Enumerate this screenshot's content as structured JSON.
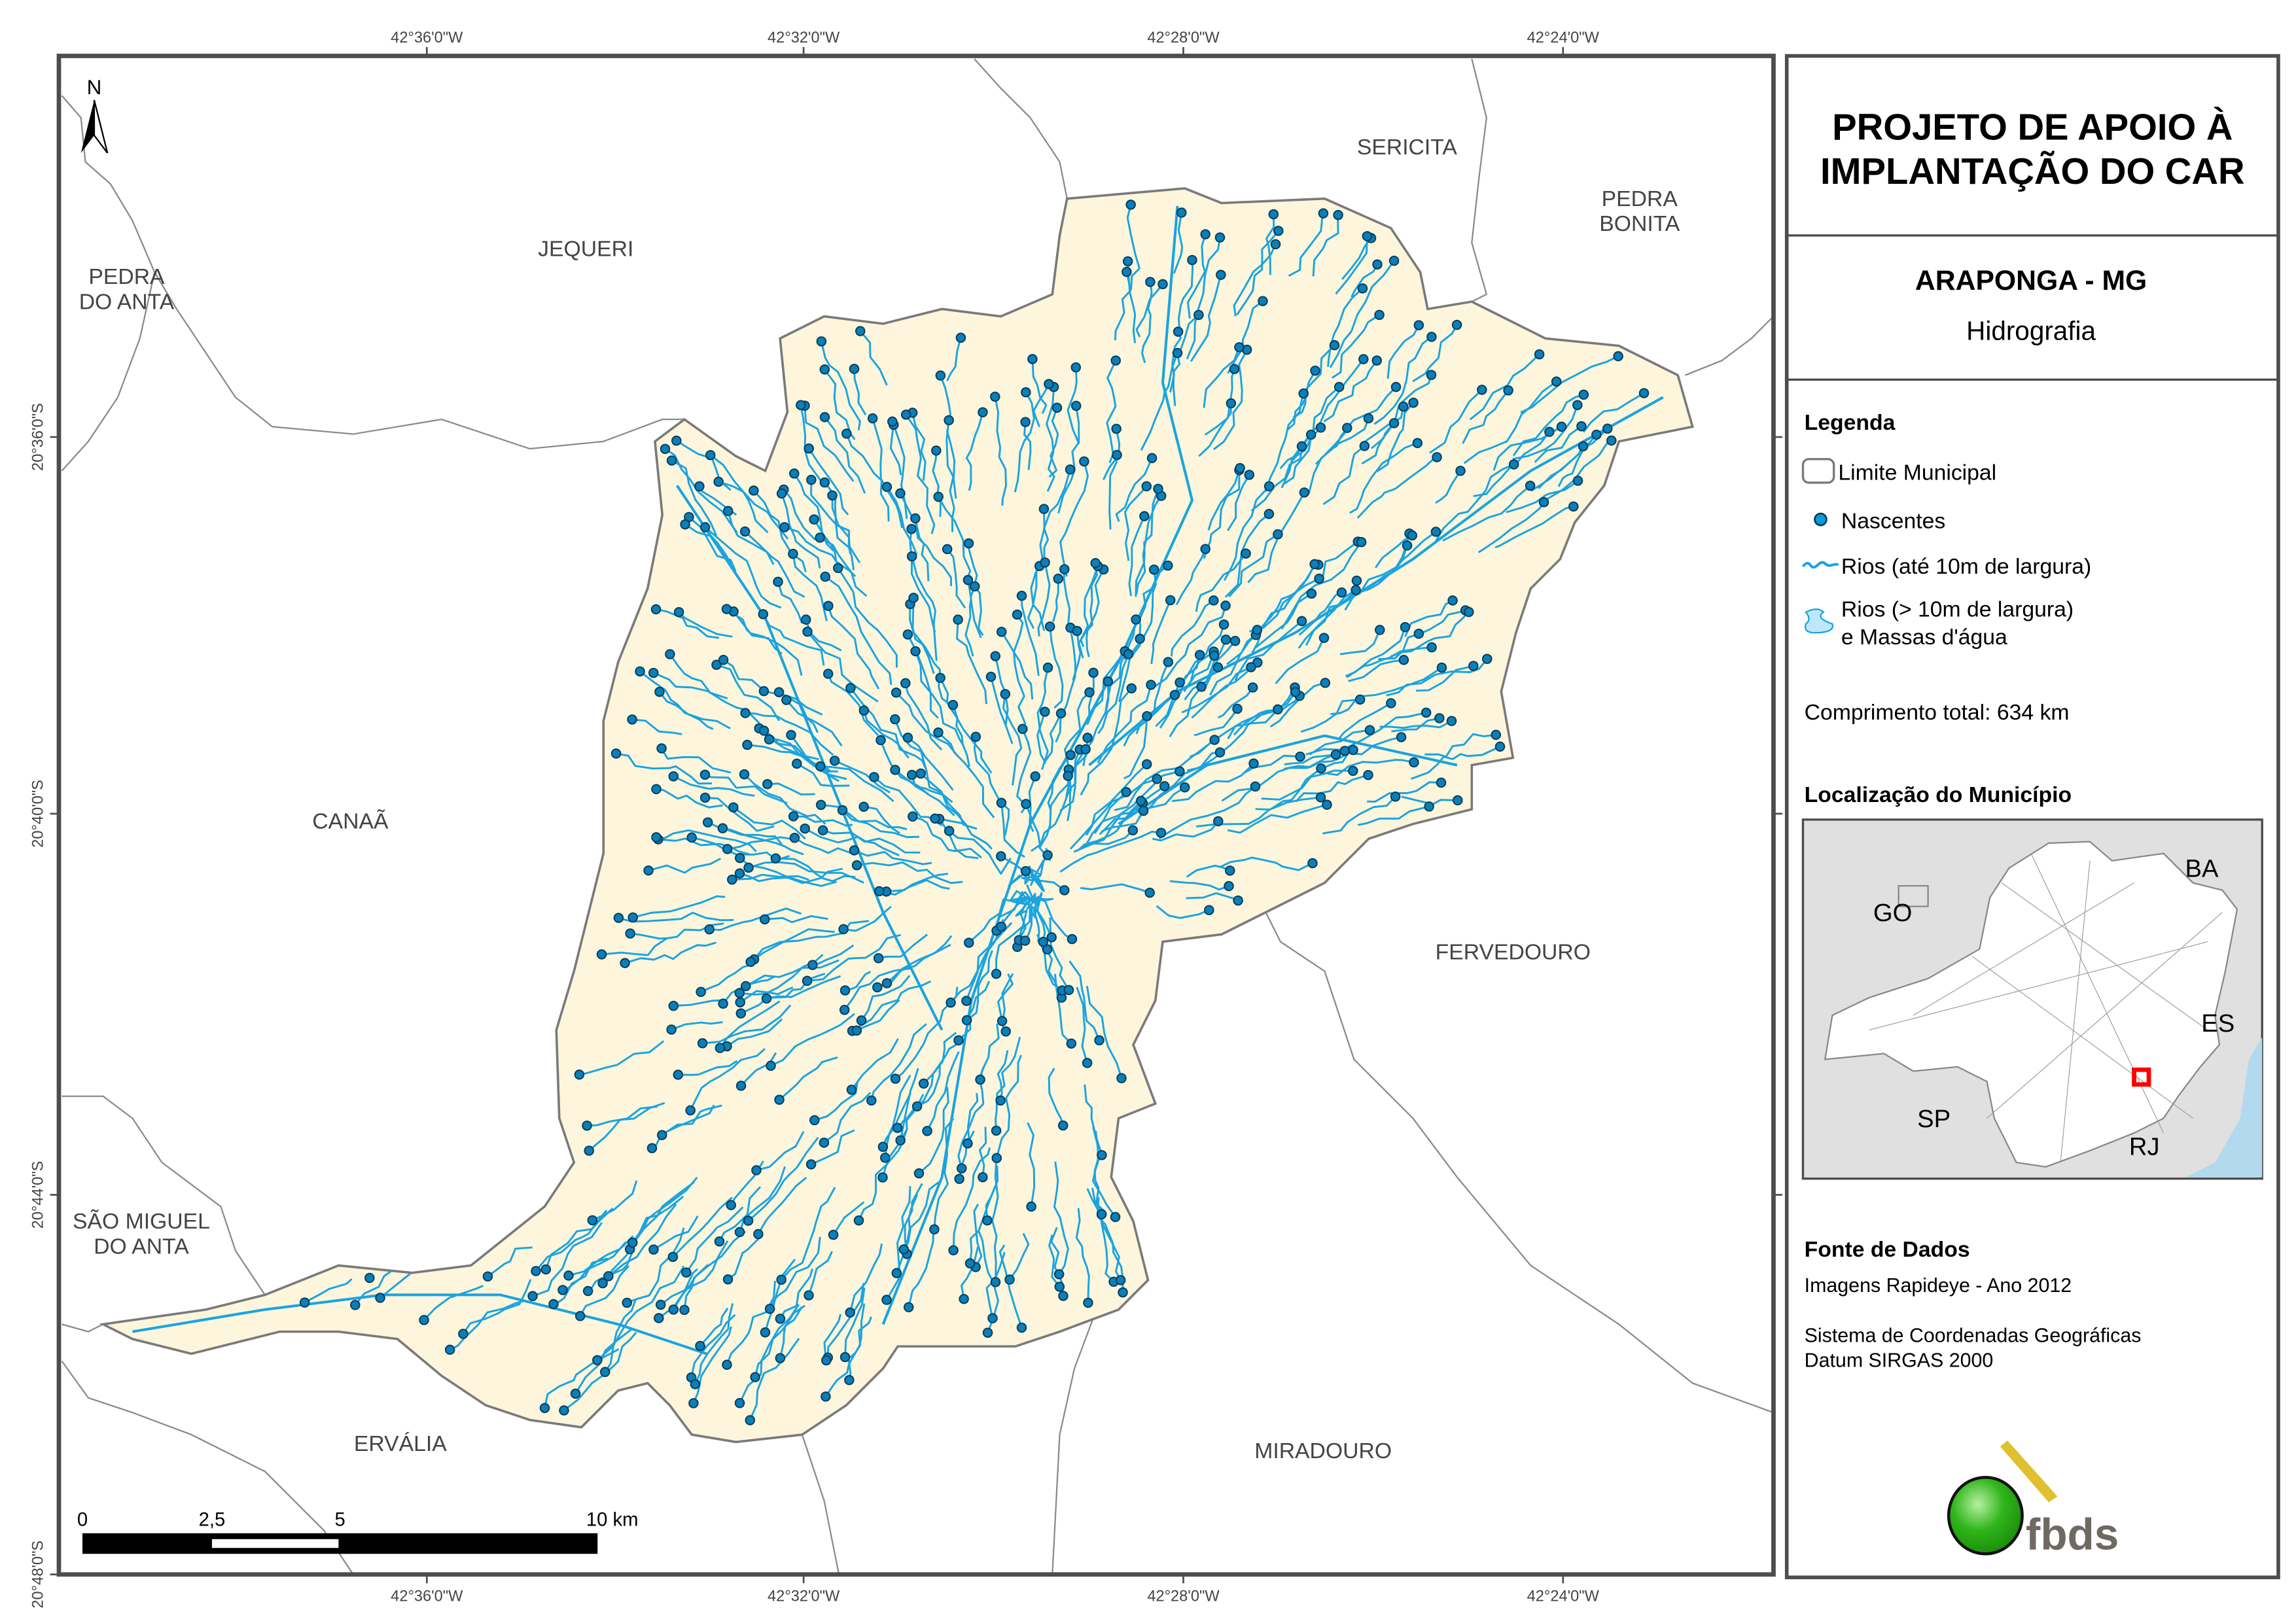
{
  "title": {
    "line1": "PROJETO DE APOIO À",
    "line2": "IMPLANTAÇÃO DO CAR"
  },
  "subtitle": {
    "municipality": "ARAPONGA - MG",
    "theme": "Hidrografia"
  },
  "legend": {
    "heading": "Legenda",
    "items": [
      {
        "label": "Limite Municipal",
        "icon": "municipal-boundary-icon"
      },
      {
        "label": "Nascentes",
        "icon": "spring-dot-icon"
      },
      {
        "label": "Rios (até 10m de largura)",
        "icon": "river-line-icon"
      },
      {
        "label": "Rios (> 10m de largura)",
        "label2": "e Massas d'água",
        "icon": "water-body-icon"
      }
    ],
    "total_length": "Comprimento total:  634 km"
  },
  "location": {
    "heading": "Localização do Município",
    "states": [
      "GO",
      "BA",
      "ES",
      "SP",
      "RJ"
    ]
  },
  "sources": {
    "heading": "Fonte de Dados",
    "line1": "Imagens Rapideye - Ano 2012",
    "line2": "Sistema de Coordenadas Geográficas",
    "line3": "Datum SIRGAS 2000"
  },
  "logo": {
    "text": "fbds"
  },
  "north_arrow": "N",
  "scale_bar": {
    "ticks": [
      "0",
      "2,5",
      "5",
      "10 km"
    ]
  },
  "graticule": {
    "longitudes": [
      "42°36'0\"W",
      "42°32'0\"W",
      "42°28'0\"W",
      "42°24'0\"W"
    ],
    "latitudes": [
      "20°36'0\"S",
      "20°40'0\"S",
      "20°44'0\"S",
      "20°48'0\"S"
    ]
  },
  "neighbors": {
    "jequeri": "JEQUERI",
    "sericita": "SERICITA",
    "pedra_bonita": [
      "PEDRA",
      "BONITA"
    ],
    "pedra_do_anta": [
      "PEDRA",
      "DO ANTA"
    ],
    "canaa": "CANAÃ",
    "fervedouro": "FERVEDOURO",
    "sao_miguel": [
      "SÃO MIGUEL",
      "DO ANTA"
    ],
    "ervalia": "ERVÁLIA",
    "miradouro": "MIRADOURO"
  },
  "colors": {
    "municipality_fill": "#fdf6dc",
    "boundary": "#7a7a7a",
    "river": "#1aa3e0",
    "spring": "#0a7fb8",
    "spring_outline": "#0b3d5c",
    "frame": "#4d4d4d",
    "inset_bg": "#e0e0e0",
    "sea": "#b3d9ef",
    "highlight": "#ff0000"
  }
}
